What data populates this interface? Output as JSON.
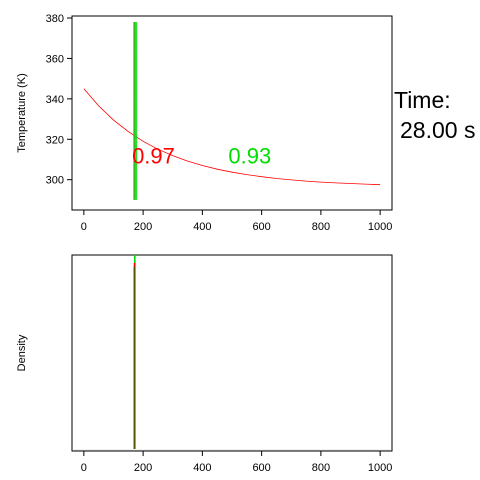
{
  "chart_data": [
    {
      "type": "line",
      "title": "",
      "xlabel": "",
      "ylabel": "Temperature (K)",
      "xlim": [
        -40,
        1040
      ],
      "ylim": [
        285,
        381
      ],
      "xticks": [
        0,
        200,
        400,
        600,
        800,
        1000
      ],
      "yticks": [
        300,
        320,
        340,
        360,
        380
      ],
      "grid": false,
      "series": [
        {
          "color": "#ff0000",
          "kind": "curve",
          "x": [
            0,
            50,
            100,
            150,
            200,
            250,
            300,
            350,
            400,
            450,
            500,
            550,
            600,
            650,
            700,
            750,
            800,
            850,
            900,
            950,
            1000
          ],
          "y": [
            345,
            336.5,
            329.5,
            323.8,
            319.0,
            315.1,
            311.9,
            309.2,
            307.0,
            305.2,
            303.7,
            302.5,
            301.5,
            300.6,
            299.9,
            299.3,
            298.8,
            298.4,
            298.1,
            297.8,
            297.5
          ]
        },
        {
          "color": "#ff0000",
          "kind": "vertical",
          "x": 170,
          "y_range": [
            290,
            378
          ]
        },
        {
          "color": "#00dd00",
          "kind": "vertical-band",
          "x_range": [
            168,
            180
          ],
          "y_range": [
            290,
            378
          ]
        }
      ],
      "annotations": [
        {
          "text": "0.97",
          "color": "#ff0000",
          "x": 235,
          "y": 308
        },
        {
          "text": "0.93",
          "color": "#00dd00",
          "x": 560,
          "y": 308
        }
      ]
    },
    {
      "type": "line",
      "title": "",
      "xlabel": "",
      "ylabel": "Density",
      "xlim": [
        -40,
        1040
      ],
      "ylim": [
        0,
        1
      ],
      "xticks": [
        0,
        200,
        400,
        600,
        800,
        1000
      ],
      "yticks": [],
      "grid": false,
      "series": [
        {
          "color": "#00dd00",
          "kind": "spike",
          "x": 172,
          "y_range": [
            0.01,
            1.0
          ]
        },
        {
          "color": "#ff0000",
          "kind": "spike",
          "x": 171,
          "y_range": [
            0.01,
            0.96
          ]
        },
        {
          "color": "#555500",
          "kind": "spike",
          "x": 170.5,
          "y_range": [
            0.01,
            0.94
          ]
        }
      ]
    }
  ],
  "side_text": {
    "time_label": "Time:",
    "time_value": "28.00 s"
  }
}
